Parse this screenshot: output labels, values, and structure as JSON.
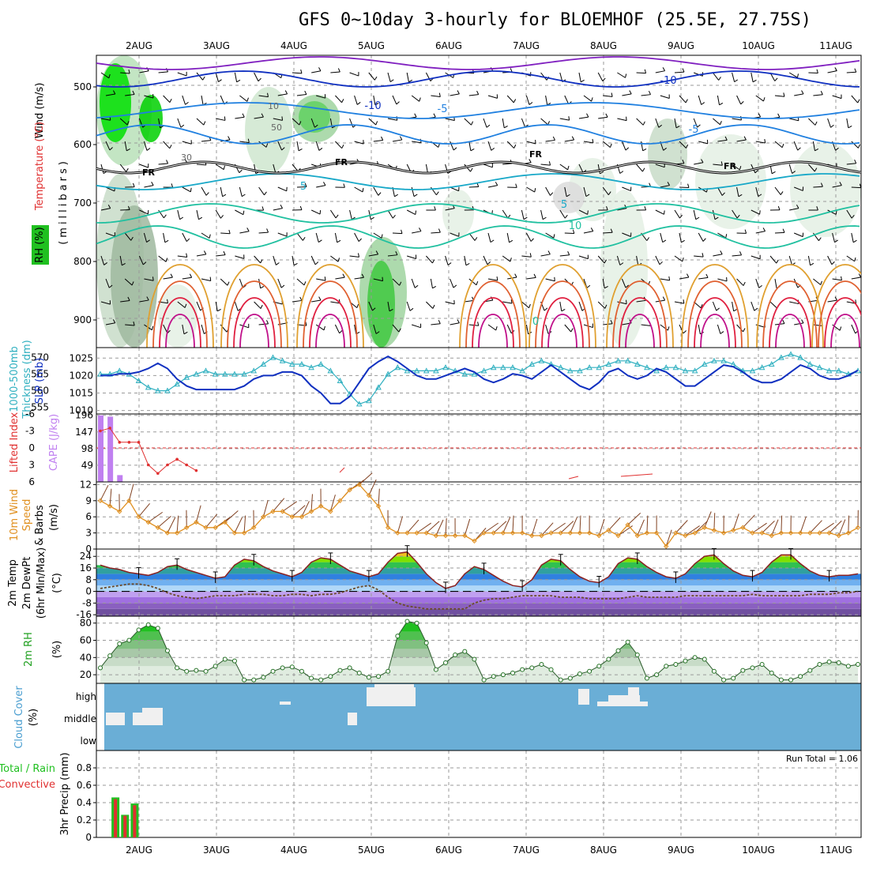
{
  "title": "GFS 0~10day 3-hourly for BLOEMHOF (25.5E, 27.75S)",
  "colors": {
    "grid": "#9a9a9a",
    "rh": "#00c000",
    "temp_warm": "#e0a030",
    "temp_hot": "#e02040",
    "temp_cool": "#20c0a0",
    "temp_cold": "#2080e0",
    "temp_vcold": "#8020c0",
    "slp": "#1030c0",
    "thickness": "#30b0c0",
    "cape": "#c080f0",
    "lifted": "#e03030",
    "wind": "#e09020",
    "barb": "#804020",
    "cloud_bg": "#6aaed6",
    "cloud_fill": "#f0f0f0",
    "precip_total": "#20c020",
    "precip_conv": "#e03030"
  },
  "time_labels": [
    "2AUG",
    "3AUG",
    "4AUG",
    "5AUG",
    "6AUG",
    "7AUG",
    "8AUG",
    "9AUG",
    "10AUG",
    "11AUG"
  ],
  "panels": {
    "upper": {
      "labels": {
        "rh": "RH (%)",
        "temperature": "Temperature (°C)",
        "wind": "Wind (m/s)",
        "axis": "(millibars)"
      },
      "y_ticks": [
        "500",
        "600",
        "700",
        "800",
        "900"
      ],
      "contour_labels": {
        "m10": "-10",
        "m5": "-5",
        "p5": "5",
        "p10": "10",
        "zero": "0",
        "fr": "FR",
        "rh50": "50",
        "rh30": "30",
        "rh10": "10"
      }
    },
    "slp": {
      "labels": {
        "thickness": "Thickness (dm)",
        "thickness_top": "1000-500mb",
        "slp": "SLP (mb)"
      },
      "left_ticks": [
        "570",
        "565",
        "560",
        "555"
      ],
      "right_ticks": [
        "1025",
        "1020",
        "1015",
        "1010"
      ]
    },
    "cape": {
      "labels": {
        "lifted": "Lifted Index",
        "cape": "CAPE (J/kg)"
      },
      "left_ticks": [
        "-6",
        "-3",
        "0",
        "3",
        "6"
      ],
      "right_ticks": [
        "196",
        "147",
        "98",
        "49"
      ]
    },
    "wind10": {
      "labels": {
        "title": "10m Wind",
        "speed": "Speed",
        "barbs": "& Barbs",
        "unit": "(m/s)"
      },
      "y_ticks": [
        "12",
        "9",
        "6",
        "3",
        "0"
      ]
    },
    "temp2m": {
      "labels": {
        "temp": "2m Temp",
        "dewpt": "2m DewPt",
        "minmax": "(6hr Min/Max)",
        "unit": "(°C)"
      },
      "y_ticks": [
        "24",
        "16",
        "8",
        "0",
        "-8",
        "-16"
      ]
    },
    "rh2m": {
      "labels": {
        "name": "2m RH",
        "unit": "(%)"
      },
      "y_ticks": [
        "80",
        "60",
        "40",
        "20"
      ]
    },
    "cloud": {
      "labels": {
        "name": "Cloud Cover",
        "unit": "(%)"
      },
      "levels": [
        "high",
        "middle",
        "low"
      ]
    },
    "precip": {
      "labels": {
        "total": "Total / Rain",
        "conv": "Convective",
        "unit": "3hr Precip (mm)"
      },
      "y_ticks": [
        "0.8",
        "0.6",
        "0.4",
        "0.2",
        "0"
      ],
      "run_total": "Run Total = 1.06"
    }
  },
  "chart_data": [
    {
      "type": "line",
      "name": "slp_thickness",
      "x": [
        0,
        1,
        2,
        3,
        4,
        5,
        6,
        7,
        8,
        9,
        10,
        11,
        12,
        13,
        14,
        15,
        16,
        17,
        18,
        19,
        20,
        21,
        22,
        23,
        24,
        25,
        26,
        27,
        28,
        29,
        30,
        31,
        32,
        33,
        34,
        35,
        36,
        37,
        38,
        39,
        40,
        41,
        42,
        43,
        44,
        45,
        46,
        47,
        48,
        49,
        50,
        51,
        52,
        53,
        54,
        55,
        56,
        57,
        58,
        59,
        60,
        61,
        62,
        63,
        64,
        65,
        66,
        67,
        68,
        69,
        70,
        71,
        72,
        73,
        74,
        75,
        76,
        77,
        78,
        79
      ],
      "series": [
        {
          "name": "SLP (mb)",
          "axis": "right",
          "values": [
            1020,
            1020,
            1020.5,
            1020.5,
            1021,
            1022,
            1023.5,
            1022,
            1019,
            1017,
            1016,
            1016,
            1016,
            1016,
            1016,
            1017,
            1019,
            1020,
            1020,
            1021,
            1021,
            1020,
            1017,
            1015,
            1012,
            1012,
            1014,
            1018,
            1022,
            1024,
            1025.5,
            1024,
            1022,
            1020,
            1019,
            1019,
            1020,
            1021,
            1022,
            1021,
            1019,
            1018,
            1019,
            1020.5,
            1020,
            1019,
            1021,
            1023,
            1021,
            1019,
            1017,
            1016,
            1018,
            1021,
            1022,
            1020,
            1019,
            1020,
            1022,
            1021,
            1019,
            1017,
            1017,
            1019,
            1021,
            1023,
            1022.5,
            1021,
            1019,
            1018,
            1018,
            1019,
            1021,
            1023,
            1022,
            1020,
            1019,
            1019,
            1020,
            1021.5
          ]
        },
        {
          "name": "Thickness (dm)",
          "axis": "left",
          "values": [
            565,
            565,
            566,
            565,
            563,
            561,
            560,
            560,
            562,
            564,
            565,
            566,
            565,
            565,
            565,
            565,
            566,
            568,
            570,
            569,
            568,
            568,
            567,
            568,
            566,
            563,
            559,
            556,
            557,
            561,
            565,
            567,
            566,
            566,
            566,
            566,
            567,
            566,
            565,
            565,
            566,
            567,
            567,
            567,
            566,
            568,
            569,
            568,
            567,
            566,
            566,
            567,
            567,
            568,
            569,
            569,
            568,
            567,
            566,
            567,
            567,
            566,
            566,
            568,
            569,
            569,
            568,
            566,
            566,
            567,
            568,
            570,
            571,
            570,
            568,
            567,
            566,
            566,
            565,
            566
          ]
        }
      ],
      "ylim_left": [
        553,
        573
      ],
      "ylim_right": [
        1009,
        1028
      ]
    },
    {
      "type": "bar",
      "name": "cape_lifted",
      "cape_x": [
        0,
        1,
        2
      ],
      "cape_values": [
        196,
        192,
        20
      ],
      "lifted_x": [
        0,
        1,
        2,
        3,
        4,
        5,
        6,
        7,
        8,
        9,
        10
      ],
      "lifted_values": [
        -3,
        -3.5,
        -1,
        -1,
        -1,
        3,
        4.5,
        3,
        2,
        3,
        4
      ],
      "ylim_cape": [
        0,
        200
      ],
      "ylim_lifted": [
        6,
        -6
      ]
    },
    {
      "type": "line",
      "name": "wind10m",
      "x": [
        0,
        1,
        2,
        3,
        4,
        5,
        6,
        7,
        8,
        9,
        10,
        11,
        12,
        13,
        14,
        15,
        16,
        17,
        18,
        19,
        20,
        21,
        22,
        23,
        24,
        25,
        26,
        27,
        28,
        29,
        30,
        31,
        32,
        33,
        34,
        35,
        36,
        37,
        38,
        39,
        40,
        41,
        42,
        43,
        44,
        45,
        46,
        47,
        48,
        49,
        50,
        51,
        52,
        53,
        54,
        55,
        56,
        57,
        58,
        59,
        60,
        61,
        62,
        63,
        64,
        65,
        66,
        67,
        68,
        69,
        70,
        71,
        72,
        73,
        74,
        75,
        76,
        77,
        78,
        79
      ],
      "values": [
        9,
        8,
        7,
        9,
        6,
        5,
        4,
        3,
        3,
        4,
        5,
        4,
        4,
        5,
        3,
        3,
        4,
        6,
        7,
        7,
        6,
        6,
        7,
        8,
        7,
        9,
        11,
        12,
        10,
        8,
        4,
        3,
        3,
        3,
        3,
        2.5,
        2.5,
        2.5,
        2.5,
        1.5,
        3,
        3,
        3,
        3,
        3,
        2.5,
        2.5,
        3,
        3,
        3,
        3,
        3,
        2.5,
        3.5,
        2.5,
        4.5,
        2.5,
        3,
        3,
        0.5,
        3,
        2.5,
        3,
        4,
        3.5,
        3,
        3.5,
        4,
        3,
        3,
        2.5,
        3,
        3,
        3,
        3,
        3,
        3,
        2.5,
        3,
        4
      ],
      "ylim": [
        0,
        12.5
      ]
    },
    {
      "type": "area",
      "name": "temp2m",
      "x": [
        0,
        1,
        2,
        3,
        4,
        5,
        6,
        7,
        8,
        9,
        10,
        11,
        12,
        13,
        14,
        15,
        16,
        17,
        18,
        19,
        20,
        21,
        22,
        23,
        24,
        25,
        26,
        27,
        28,
        29,
        30,
        31,
        32,
        33,
        34,
        35,
        36,
        37,
        38,
        39,
        40,
        41,
        42,
        43,
        44,
        45,
        46,
        47,
        48,
        49,
        50,
        51,
        52,
        53,
        54,
        55,
        56,
        57,
        58,
        59,
        60,
        61,
        62,
        63,
        64,
        65,
        66,
        67,
        68,
        69,
        70,
        71,
        72,
        73,
        74,
        75,
        76,
        77,
        78,
        79
      ],
      "series": [
        {
          "name": "2m Temp",
          "values": [
            18,
            16,
            15,
            13,
            12,
            11,
            13,
            17,
            18,
            15,
            13,
            11,
            9,
            10,
            18,
            22,
            21,
            17,
            14,
            12,
            10,
            13,
            20,
            23,
            22,
            18,
            14,
            12,
            10,
            12,
            20,
            26,
            27,
            20,
            12,
            6,
            2,
            4,
            12,
            17,
            15,
            11,
            7,
            4,
            3,
            8,
            18,
            22,
            21,
            15,
            10,
            7,
            6,
            10,
            19,
            23,
            22,
            17,
            13,
            10,
            9,
            12,
            19,
            24,
            25,
            19,
            14,
            11,
            10,
            13,
            20,
            25,
            25,
            19,
            14,
            11,
            10,
            11,
            11,
            12
          ]
        },
        {
          "name": "2m DewPt",
          "values": [
            2,
            3,
            4,
            5,
            5,
            4,
            2,
            -1,
            -3,
            -4,
            -5,
            -4,
            -3,
            -3,
            -3,
            -2,
            -2,
            -2,
            -3,
            -3,
            -2,
            -2,
            -3,
            -2,
            -2,
            -1,
            1,
            3,
            4,
            1,
            -4,
            -8,
            -10,
            -11,
            -12,
            -12,
            -12,
            -12,
            -12,
            -8,
            -6,
            -5,
            -5,
            -4,
            -3,
            -3,
            -3,
            -3,
            -4,
            -4,
            -4,
            -5,
            -5,
            -5,
            -5,
            -4,
            -3,
            -4,
            -4,
            -4,
            -4,
            -3,
            -3,
            -3,
            -3,
            -3,
            -3,
            -3,
            -2,
            -3,
            -3,
            -3,
            -3,
            -3,
            -2,
            -2,
            -2,
            -1,
            -1,
            0
          ]
        }
      ],
      "ylim": [
        -17,
        29
      ]
    },
    {
      "type": "area",
      "name": "rh2m",
      "x": [
        0,
        1,
        2,
        3,
        4,
        5,
        6,
        7,
        8,
        9,
        10,
        11,
        12,
        13,
        14,
        15,
        16,
        17,
        18,
        19,
        20,
        21,
        22,
        23,
        24,
        25,
        26,
        27,
        28,
        29,
        30,
        31,
        32,
        33,
        34,
        35,
        36,
        37,
        38,
        39,
        40,
        41,
        42,
        43,
        44,
        45,
        46,
        47,
        48,
        49,
        50,
        51,
        52,
        53,
        54,
        55,
        56,
        57,
        58,
        59,
        60,
        61,
        62,
        63,
        64,
        65,
        66,
        67,
        68,
        69,
        70,
        71,
        72,
        73,
        74,
        75,
        76,
        77,
        78,
        79
      ],
      "values": [
        28,
        42,
        56,
        60,
        72,
        78,
        74,
        48,
        28,
        24,
        25,
        24,
        30,
        38,
        36,
        14,
        14,
        17,
        24,
        28,
        29,
        24,
        16,
        14,
        18,
        25,
        28,
        22,
        17,
        18,
        24,
        65,
        82,
        80,
        57,
        26,
        34,
        43,
        47,
        38,
        14,
        18,
        20,
        22,
        26,
        28,
        32,
        26,
        14,
        16,
        21,
        24,
        30,
        38,
        48,
        58,
        43,
        16,
        20,
        30,
        32,
        36,
        40,
        38,
        24,
        14,
        16,
        25,
        28,
        32,
        22,
        14,
        14,
        18,
        25,
        32,
        35,
        34,
        30,
        32
      ],
      "ylim": [
        10,
        88
      ]
    },
    {
      "type": "bar",
      "name": "precip3hr",
      "x": [
        1,
        2,
        3
      ],
      "series": [
        {
          "name": "Total / Rain",
          "values": [
            0.46,
            0.26,
            0.39
          ]
        },
        {
          "name": "Convective",
          "values": [
            0.44,
            0.25,
            0.37
          ]
        }
      ],
      "ylim": [
        0,
        1.0
      ]
    }
  ]
}
